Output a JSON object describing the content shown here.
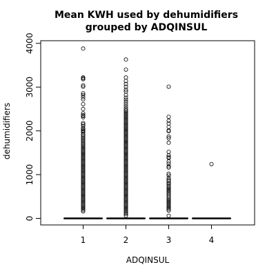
{
  "chart_data": {
    "type": "box",
    "title_lines": [
      "Mean KWH used by dehumidifiers",
      "grouped by ADQINSUL"
    ],
    "xlabel": "ADQINSUL",
    "ylabel": "dehumidifiers",
    "categories": [
      "1",
      "2",
      "3",
      "4"
    ],
    "ylim": [
      -150,
      4060
    ],
    "y_ticks": [
      0,
      1000,
      2000,
      3000,
      4000
    ],
    "y_tick_labels": [
      "0",
      "1000",
      "2000",
      "3000",
      "4000"
    ],
    "grid": false,
    "groups": [
      {
        "category": "1",
        "median": 0,
        "q1": 0,
        "q3": 0,
        "outliers": [
          3880,
          3220,
          3200,
          3180,
          3040,
          3010,
          2860,
          2820,
          2770,
          2720,
          2610,
          2500,
          2400,
          2360,
          2340,
          2310,
          2180,
          2150,
          2110,
          2060,
          2040,
          2010,
          1990,
          1960,
          1920,
          1890,
          1850,
          1820,
          1790,
          1760,
          1720,
          1690,
          1660,
          1630,
          1600,
          1570,
          1540,
          1510,
          1480,
          1450,
          1420,
          1390,
          1360,
          1330,
          1300,
          1270,
          1240,
          1210,
          1180,
          1150,
          1120,
          1090,
          1060,
          1030,
          1000,
          970,
          940,
          910,
          880,
          850,
          820,
          790,
          760,
          730,
          700,
          670,
          640,
          610,
          580,
          550,
          520,
          490,
          460,
          430,
          400,
          370,
          340,
          310,
          280,
          250,
          220,
          190,
          160
        ]
      },
      {
        "category": "2",
        "median": 0,
        "q1": 0,
        "q3": 0,
        "outliers": [
          3630,
          3400,
          3220,
          3140,
          3070,
          3010,
          2940,
          2900,
          2820,
          2760,
          2710,
          2660,
          2610,
          2560,
          2510,
          2470,
          2440,
          2410,
          2380,
          2350,
          2320,
          2290,
          2260,
          2230,
          2200,
          2170,
          2140,
          2110,
          2080,
          2050,
          2020,
          1990,
          1960,
          1930,
          1900,
          1870,
          1840,
          1810,
          1780,
          1750,
          1720,
          1690,
          1660,
          1630,
          1600,
          1570,
          1540,
          1510,
          1480,
          1450,
          1420,
          1390,
          1360,
          1330,
          1300,
          1270,
          1240,
          1210,
          1180,
          1150,
          1120,
          1090,
          1060,
          1030,
          1000,
          970,
          940,
          910,
          880,
          850,
          820,
          790,
          760,
          730,
          700,
          670,
          640,
          610,
          580,
          550,
          520,
          490,
          460,
          430,
          400,
          370,
          340,
          310,
          280,
          250,
          220,
          190,
          160,
          130,
          100,
          60
        ]
      },
      {
        "category": "3",
        "median": 0,
        "q1": 0,
        "q3": 0,
        "outliers": [
          3010,
          2320,
          2230,
          2170,
          2090,
          2010,
          1990,
          1870,
          1830,
          1730,
          1520,
          1440,
          1400,
          1380,
          1300,
          1250,
          1190,
          1160,
          1020,
          980,
          920,
          880,
          850,
          810,
          780,
          740,
          710,
          680,
          650,
          620,
          590,
          560,
          520,
          480,
          450,
          420,
          390,
          360,
          330,
          300,
          270,
          240,
          210,
          180,
          60
        ]
      },
      {
        "category": "4",
        "median": 0,
        "q1": 0,
        "q3": 0,
        "outliers": [
          1240
        ]
      }
    ]
  }
}
